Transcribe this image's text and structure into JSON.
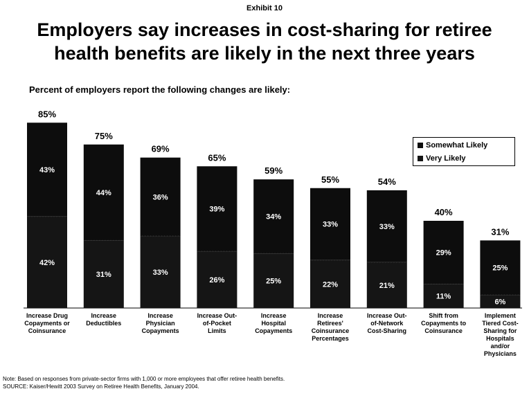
{
  "exhibit": "Exhibit 10",
  "title": "Employers say increases in cost-sharing for retiree health benefits are likely in the next three years",
  "subtitle": "Percent of employers report the following changes are likely:",
  "note_line1": "Note:  Based on responses from private-sector firms with 1,000 or more employees that offer retiree health benefits.",
  "note_line2": "SOURCE:  Kaiser/Hewitt 2003 Survey on Retiree Health Benefits, January 2004.",
  "colors": {
    "somewhat_likely": "#0d0d0d",
    "very_likely": "#151515",
    "text": "#000000"
  },
  "chart_data": {
    "type": "bar",
    "stacked": true,
    "ylim": [
      0,
      100
    ],
    "grid": false,
    "legend_position": "top-right",
    "categories": [
      [
        "Increase Drug",
        "Copayments or",
        "Coinsurance"
      ],
      [
        "Increase",
        "Deductibles"
      ],
      [
        "Increase",
        "Physician",
        "Copayments"
      ],
      [
        "Increase Out-",
        "of-Pocket",
        "Limits"
      ],
      [
        "Increase",
        "Hospital",
        "Copayments"
      ],
      [
        "Increase",
        "Retirees'",
        "Coinsurance",
        "Percentages"
      ],
      [
        "Increase Out-",
        "of-Network",
        "Cost-Sharing"
      ],
      [
        "Shift from",
        "Copayments to",
        "Coinsurance"
      ],
      [
        "Implement",
        "Tiered Cost-",
        "Sharing for",
        "Hospitals",
        "and/or",
        "Physicians"
      ]
    ],
    "totals": [
      "85%",
      "75%",
      "69%",
      "65%",
      "59%",
      "55%",
      "54%",
      "40%",
      "31%"
    ],
    "series": [
      {
        "name": "Very Likely",
        "values": [
          42,
          31,
          33,
          26,
          25,
          22,
          21,
          11,
          6
        ],
        "labels": [
          "42%",
          "31%",
          "33%",
          "26%",
          "25%",
          "22%",
          "21%",
          "11%",
          "6%"
        ]
      },
      {
        "name": "Somewhat Likely",
        "values": [
          43,
          44,
          36,
          39,
          34,
          33,
          33,
          29,
          25
        ],
        "labels": [
          "43%",
          "44%",
          "36%",
          "39%",
          "34%",
          "33%",
          "33%",
          "29%",
          "25%"
        ]
      }
    ]
  }
}
